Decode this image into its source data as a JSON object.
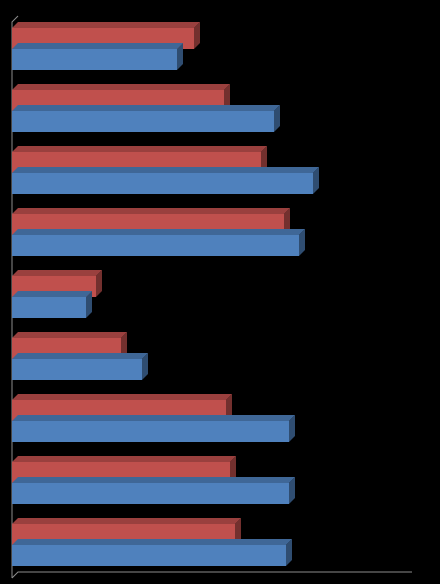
{
  "chart_data": {
    "type": "bar",
    "orientation": "horizontal",
    "categories": [
      null,
      null,
      null,
      null,
      null,
      null,
      null,
      null,
      null
    ],
    "series": [
      {
        "color": "#c0504d",
        "values": [
          182,
          212,
          249,
          272,
          84,
          109,
          214,
          218,
          223
        ]
      },
      {
        "color": "#4f81bd",
        "values": [
          165,
          262,
          301,
          287,
          74,
          130,
          277,
          277,
          274
        ]
      }
    ],
    "xlim": [
      0,
      400
    ]
  }
}
